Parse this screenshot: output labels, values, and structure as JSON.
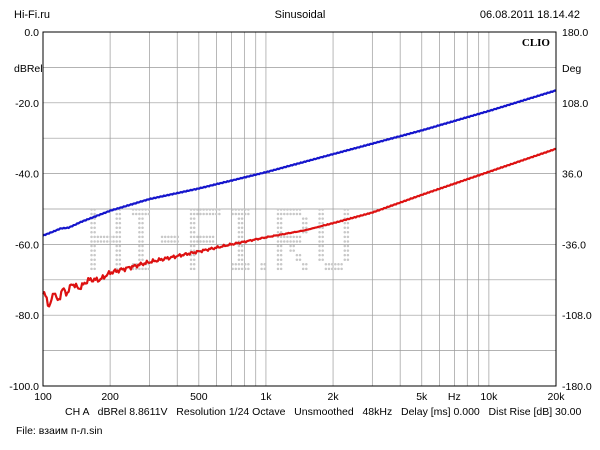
{
  "header": {
    "left": "Hi-Fi.ru",
    "center": "Sinusoidal",
    "right": "06.08.2011 18.14.42"
  },
  "brand": "CLIO",
  "footer": {
    "info": "CH A   dBRel 8.8611V   Resolution 1/24 Octave   Unsmoothed   48kHz   Delay [ms] 0.000   Dist Rise [dB] 30.00",
    "file": "File: взаим п-л.sin"
  },
  "watermark": "Hi-Fi.ru",
  "colors": {
    "series_blue": "#1515cc",
    "series_red": "#dd1111",
    "grid": "#9a9a9a",
    "watermark": "#c8c8c8"
  },
  "chart_data": {
    "type": "line",
    "x_scale": "log",
    "xlim": [
      100,
      20000
    ],
    "ylim_left": [
      -100,
      0
    ],
    "ylim_right": [
      -180,
      180
    ],
    "ylabel_left": "dBRel",
    "ylabel_right": "Deg",
    "x_axis_label": "Hz",
    "x_ticks": [
      {
        "value": 100,
        "label": "100"
      },
      {
        "value": 200,
        "label": "200"
      },
      {
        "value": 500,
        "label": "500"
      },
      {
        "value": 1000,
        "label": "1k"
      },
      {
        "value": 2000,
        "label": "2k"
      },
      {
        "value": 5000,
        "label": "5k"
      },
      {
        "value": 10000,
        "label": "10k"
      },
      {
        "value": 20000,
        "label": "20k"
      }
    ],
    "y_ticks_left": [
      {
        "value": 0,
        "label": "0.0"
      },
      {
        "value": -20,
        "label": "-20.0"
      },
      {
        "value": -40,
        "label": "-40.0"
      },
      {
        "value": -60,
        "label": "-60.0"
      },
      {
        "value": -80,
        "label": "-80.0"
      },
      {
        "value": -100,
        "label": "-100.0"
      }
    ],
    "y_ticks_right": [
      {
        "value": 180,
        "label": "180.0"
      },
      {
        "value": 108,
        "label": "108.0"
      },
      {
        "value": 36,
        "label": "36.0"
      },
      {
        "value": -36,
        "label": "-36.0"
      },
      {
        "value": -108,
        "label": "-108.0"
      },
      {
        "value": -180,
        "label": "-180.0"
      }
    ],
    "series": [
      {
        "color": "#1515cc",
        "x": [
          100,
          110,
          120,
          130,
          150,
          170,
          200,
          300,
          500,
          1000,
          2000,
          5000,
          10000,
          20000
        ],
        "y": [
          -57.5,
          -56.5,
          -55.5,
          -55.3,
          -53.5,
          -52.2,
          -50.5,
          -47.2,
          -44.2,
          -39.6,
          -34.5,
          -27.8,
          -22.3,
          -16.5
        ]
      },
      {
        "color": "#dd1111",
        "x": [
          100,
          103,
          107,
          112,
          117,
          122,
          128,
          135,
          145,
          160,
          180,
          200,
          300,
          500,
          700,
          1000,
          1500,
          2000,
          3000,
          5000,
          10000,
          20000
        ],
        "y": [
          -74.0,
          -74.5,
          -78.0,
          -73.0,
          -76.5,
          -72.5,
          -74.0,
          -71.0,
          -72.5,
          -70.0,
          -70.0,
          -68.0,
          -65.0,
          -62.0,
          -60.0,
          -58.0,
          -56.0,
          -54.0,
          -51.0,
          -46.0,
          -39.5,
          -33.0
        ],
        "noise_until": 1800
      }
    ]
  }
}
